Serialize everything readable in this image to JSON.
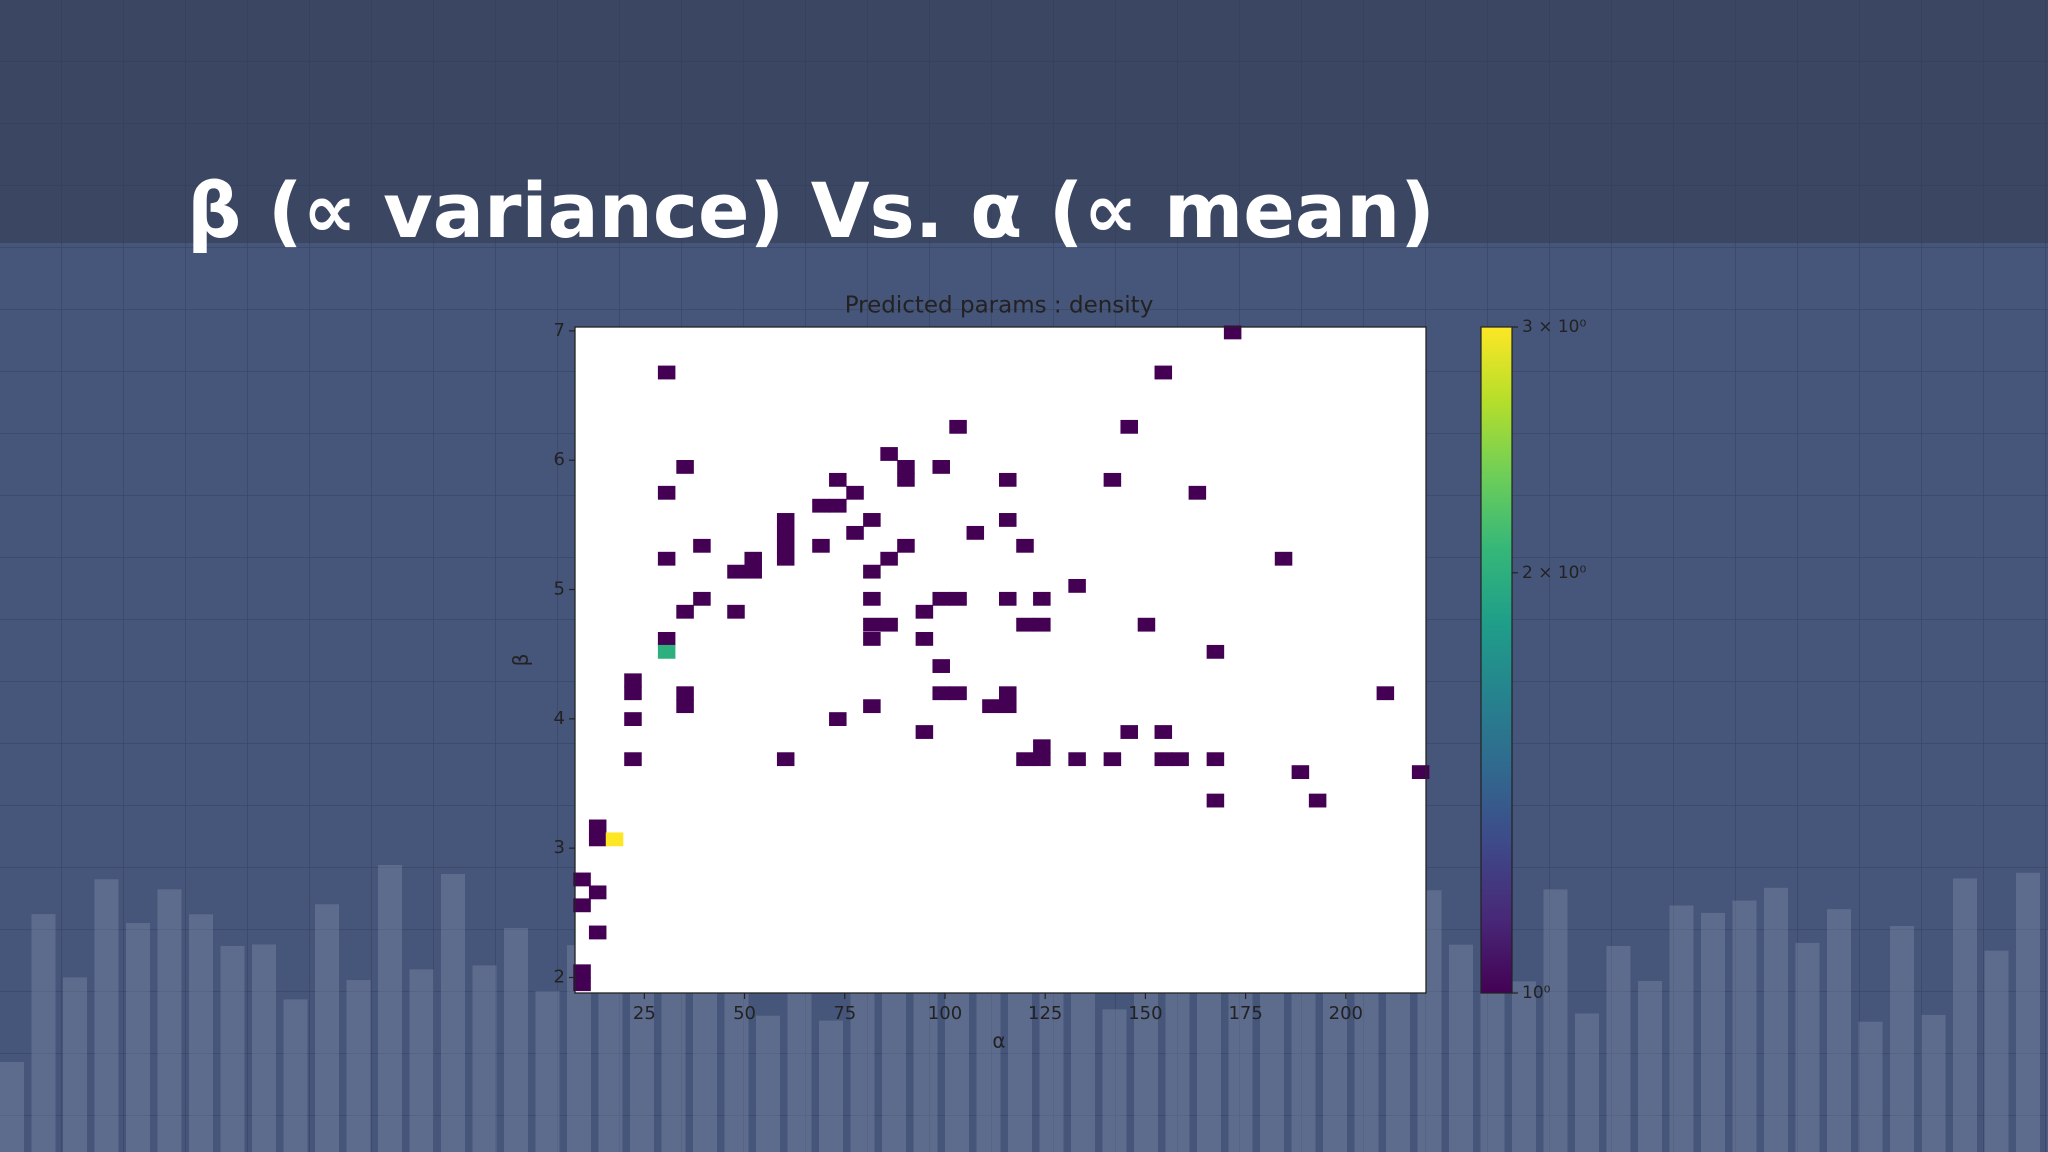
{
  "slide_title": "β (∝ variance) Vs. α (∝ mean)",
  "chart_data": {
    "type": "hist2d",
    "title": "Predicted params : density",
    "x_label": "α",
    "y_label": "β",
    "bins": [
      50,
      50
    ],
    "xlim": [
      7.7,
      220
    ],
    "ylim": [
      1.88,
      7.03
    ],
    "xticks": [
      25,
      50,
      75,
      100,
      125,
      150,
      175,
      200
    ],
    "yticks": [
      2,
      3,
      4,
      5,
      6,
      7
    ],
    "x": [
      30.5,
      35.1,
      30.5,
      39.3,
      30.5,
      47.8,
      52.1,
      52.1,
      39.3,
      35.1,
      47.8,
      30.5,
      30.5,
      22.1,
      22.1,
      35.1,
      35.1,
      22.1,
      22.1,
      60.2,
      60.2,
      60.2,
      60.2,
      60.2,
      69,
      69,
      73.2,
      73.2,
      77.5,
      77.5,
      81.7,
      81.7,
      86,
      90.2,
      86,
      90.2,
      90.2,
      99,
      103.2,
      115.6,
      107.5,
      115.6,
      119.9,
      81.7,
      81.7,
      81.7,
      86,
      99,
      103.2,
      94.8,
      94.8,
      99,
      99,
      103.2,
      73.2,
      81.7,
      94.8,
      115.6,
      124.1,
      119.9,
      124.1,
      115.6,
      111.4,
      115.6,
      132.9,
      141.7,
      145.9,
      154.4,
      171.7,
      162.9,
      184.4,
      150.2,
      167.4,
      209.8,
      145.9,
      154.4,
      119.9,
      124.1,
      124.1,
      132.9,
      141.7,
      154.4,
      158.6,
      167.4,
      167.4,
      188.6,
      192.9,
      218.6,
      13.3,
      13.3,
      17.5,
      9.4,
      13.3,
      9.4,
      13.3,
      9.4,
      9.4
    ],
    "y": [
      6.68,
      5.95,
      5.75,
      5.34,
      5.24,
      5.14,
      5.14,
      5.24,
      4.93,
      4.83,
      4.83,
      4.62,
      4.52,
      4.3,
      4.2,
      4.2,
      4.1,
      4.0,
      3.69,
      5.54,
      5.44,
      5.34,
      5.24,
      3.69,
      5.34,
      5.65,
      5.65,
      5.85,
      5.75,
      5.44,
      5.54,
      5.14,
      5.24,
      5.34,
      6.05,
      5.95,
      5.85,
      5.95,
      6.26,
      5.85,
      5.44,
      5.54,
      5.34,
      4.93,
      4.73,
      4.62,
      4.73,
      4.93,
      4.93,
      4.83,
      4.62,
      4.41,
      4.2,
      4.2,
      4.0,
      4.1,
      3.9,
      4.93,
      4.93,
      4.73,
      4.73,
      4.2,
      4.1,
      4.1,
      5.03,
      5.85,
      6.26,
      6.68,
      6.99,
      5.75,
      5.24,
      4.73,
      4.52,
      4.2,
      3.9,
      3.9,
      3.69,
      3.69,
      3.79,
      3.69,
      3.69,
      3.69,
      3.69,
      3.69,
      3.37,
      3.59,
      3.37,
      3.59,
      3.17,
      3.07,
      3.07,
      2.76,
      2.66,
      2.56,
      2.35,
      2.05,
      1.95
    ],
    "values": [
      1,
      1,
      1,
      1,
      1,
      1,
      1,
      1,
      1,
      1,
      1,
      1,
      2,
      1,
      1,
      1,
      1,
      1,
      1,
      1,
      1,
      1,
      1,
      1,
      1,
      1,
      1,
      1,
      1,
      1,
      1,
      1,
      1,
      1,
      1,
      1,
      1,
      1,
      1,
      1,
      1,
      1,
      1,
      1,
      1,
      1,
      1,
      1,
      1,
      1,
      1,
      1,
      1,
      1,
      1,
      1,
      1,
      1,
      1,
      1,
      1,
      1,
      1,
      1,
      1,
      1,
      1,
      1,
      1,
      1,
      1,
      1,
      1,
      1,
      1,
      1,
      1,
      1,
      1,
      1,
      1,
      1,
      1,
      1,
      1,
      1,
      1,
      1,
      1,
      1,
      3,
      1,
      1,
      1,
      1,
      1,
      1
    ],
    "colorbar": {
      "colormap": "viridis",
      "log": true,
      "lim": [
        1,
        3
      ],
      "ticks": [
        {
          "value": 1,
          "label": "10⁰"
        },
        {
          "value": 2,
          "label": "2 × 10⁰"
        },
        {
          "value": 3,
          "label": "3 × 10⁰"
        }
      ]
    }
  }
}
